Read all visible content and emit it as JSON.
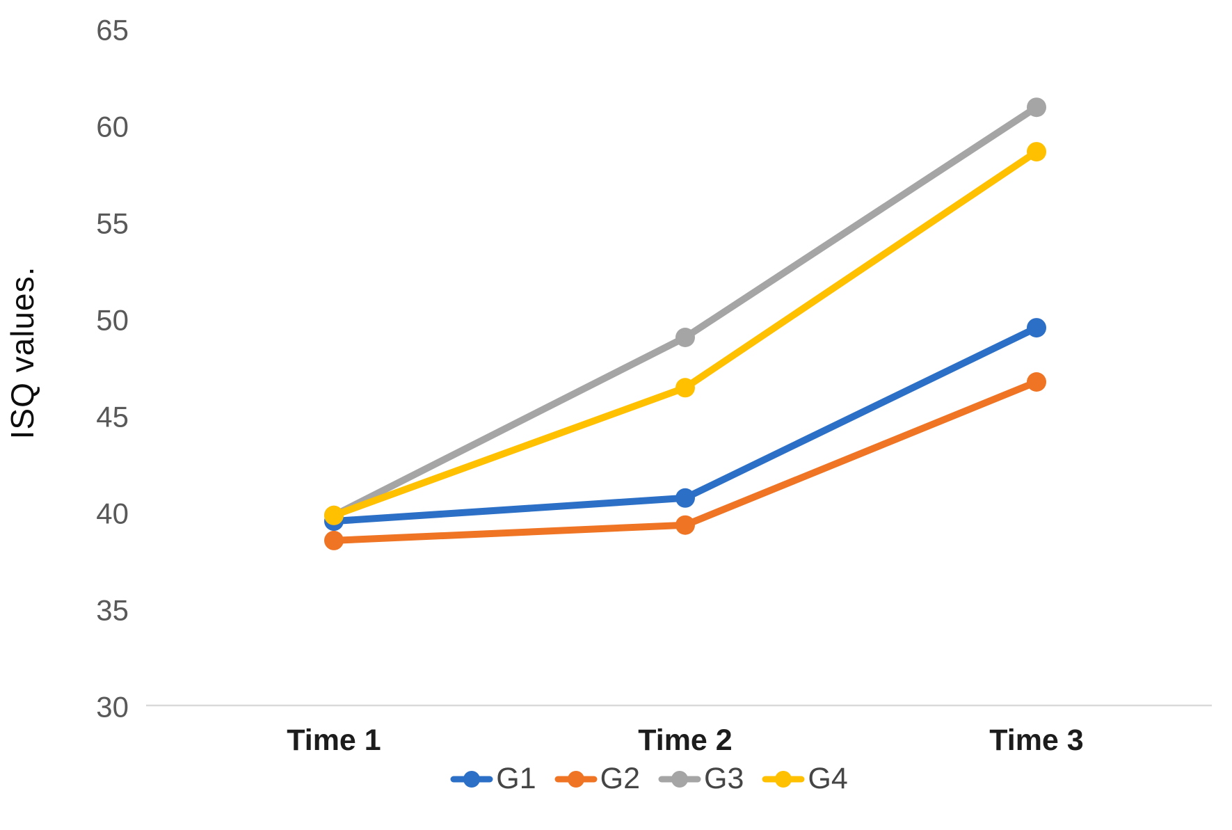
{
  "chart_data": {
    "type": "line",
    "title": "",
    "ylabel": "ISQ values.",
    "xlabel": "",
    "categories": [
      "Time 1",
      "Time 2",
      "Time 3"
    ],
    "series": [
      {
        "name": "G1",
        "color": "#2B6FC6",
        "values": [
          39.6,
          40.8,
          49.6
        ]
      },
      {
        "name": "G2",
        "color": "#EF7424",
        "values": [
          38.6,
          39.4,
          46.8
        ]
      },
      {
        "name": "G3",
        "color": "#A5A5A5",
        "values": [
          39.9,
          49.1,
          61.0
        ]
      },
      {
        "name": "G4",
        "color": "#FFC000",
        "values": [
          39.9,
          46.5,
          58.7
        ]
      }
    ],
    "yticks": [
      30,
      35,
      40,
      45,
      50,
      55,
      60,
      65
    ],
    "ylim": [
      30,
      65
    ],
    "grid": false,
    "axis_line_color": "#D9D9D9",
    "tick_label_color": "#595959",
    "legend_position": "bottom"
  }
}
